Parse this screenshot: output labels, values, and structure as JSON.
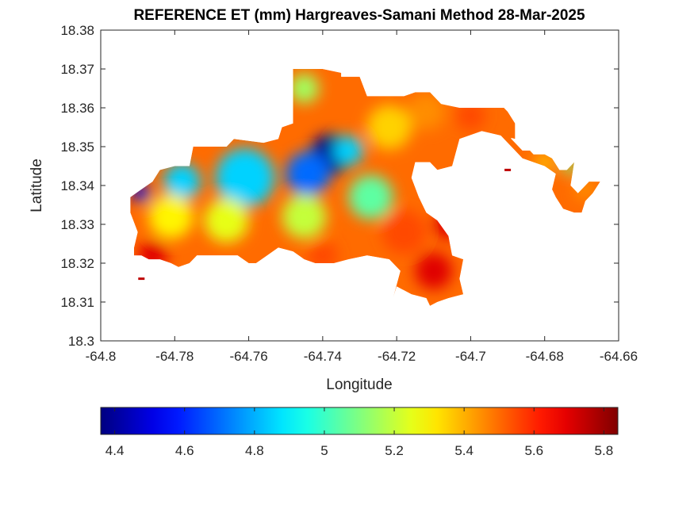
{
  "chart_data": {
    "type": "heatmap",
    "title": "REFERENCE ET (mm) Hargreaves-Samani Method  28-Mar-2025",
    "xlabel": "Longitude",
    "ylabel": "Latitude",
    "xlim": [
      -64.8,
      -64.66
    ],
    "ylim": [
      18.3,
      18.38
    ],
    "x_ticks": [
      -64.8,
      -64.78,
      -64.76,
      -64.74,
      -64.72,
      -64.7,
      -64.68,
      -64.66
    ],
    "x_tick_labels": [
      "-64.8",
      "-64.78",
      "-64.76",
      "-64.74",
      "-64.72",
      "-64.7",
      "-64.68",
      "-64.66"
    ],
    "y_ticks": [
      18.3,
      18.31,
      18.32,
      18.33,
      18.34,
      18.35,
      18.36,
      18.37,
      18.38
    ],
    "y_tick_labels": [
      "18.3",
      "18.31",
      "18.32",
      "18.33",
      "18.34",
      "18.35",
      "18.36",
      "18.37",
      "18.38"
    ],
    "grid": false,
    "colormap": "jet",
    "colorbar": {
      "placement": "bottom",
      "range": [
        4.36,
        5.84
      ],
      "ticks": [
        4.4,
        4.6,
        4.8,
        5.0,
        5.2,
        5.4,
        5.6,
        5.8
      ],
      "tick_labels": [
        "4.4",
        "4.6",
        "4.8",
        "5",
        "5.2",
        "5.4",
        "5.6",
        "5.8"
      ]
    },
    "region": {
      "outline": [
        [
          -64.792,
          18.337
        ],
        [
          -64.789,
          18.339
        ],
        [
          -64.786,
          18.341
        ],
        [
          -64.784,
          18.344
        ],
        [
          -64.78,
          18.345
        ],
        [
          -64.776,
          18.345
        ],
        [
          -64.775,
          18.35
        ],
        [
          -64.766,
          18.35
        ],
        [
          -64.764,
          18.352
        ],
        [
          -64.756,
          18.351
        ],
        [
          -64.752,
          18.352
        ],
        [
          -64.751,
          18.355
        ],
        [
          -64.748,
          18.356
        ],
        [
          -64.748,
          18.37
        ],
        [
          -64.74,
          18.37
        ],
        [
          -64.735,
          18.369
        ],
        [
          -64.735,
          18.368
        ],
        [
          -64.73,
          18.368
        ],
        [
          -64.728,
          18.363
        ],
        [
          -64.718,
          18.363
        ],
        [
          -64.715,
          18.364
        ],
        [
          -64.711,
          18.364
        ],
        [
          -64.708,
          18.361
        ],
        [
          -64.703,
          18.36
        ],
        [
          -64.7,
          18.36
        ],
        [
          -64.691,
          18.36
        ],
        [
          -64.69,
          18.359
        ],
        [
          -64.688,
          18.356
        ],
        [
          -64.688,
          18.352
        ],
        [
          -64.697,
          18.354
        ],
        [
          -64.703,
          18.352
        ],
        [
          -64.705,
          18.345
        ],
        [
          -64.709,
          18.344
        ],
        [
          -64.711,
          18.346
        ],
        [
          -64.715,
          18.346
        ],
        [
          -64.716,
          18.342
        ],
        [
          -64.714,
          18.337
        ],
        [
          -64.712,
          18.333
        ],
        [
          -64.709,
          18.331
        ],
        [
          -64.706,
          18.327
        ],
        [
          -64.705,
          18.322
        ],
        [
          -64.702,
          18.321
        ],
        [
          -64.703,
          18.316
        ],
        [
          -64.702,
          18.312
        ],
        [
          -64.706,
          18.311
        ],
        [
          -64.709,
          18.31
        ],
        [
          -64.711,
          18.309
        ],
        [
          -64.712,
          18.311
        ],
        [
          -64.716,
          18.312
        ],
        [
          -64.72,
          18.314
        ],
        [
          -64.721,
          18.311
        ],
        [
          -64.719,
          18.318
        ],
        [
          -64.722,
          18.321
        ],
        [
          -64.728,
          18.322
        ],
        [
          -64.733,
          18.321
        ],
        [
          -64.737,
          18.32
        ],
        [
          -64.742,
          18.32
        ],
        [
          -64.745,
          18.321
        ],
        [
          -64.748,
          18.323
        ],
        [
          -64.752,
          18.324
        ],
        [
          -64.755,
          18.322
        ],
        [
          -64.758,
          18.32
        ],
        [
          -64.76,
          18.32
        ],
        [
          -64.763,
          18.322
        ],
        [
          -64.766,
          18.322
        ],
        [
          -64.77,
          18.322
        ],
        [
          -64.774,
          18.322
        ],
        [
          -64.776,
          18.32
        ],
        [
          -64.779,
          18.319
        ],
        [
          -64.781,
          18.32
        ],
        [
          -64.784,
          18.321
        ],
        [
          -64.787,
          18.321
        ],
        [
          -64.789,
          18.322
        ],
        [
          -64.791,
          18.322
        ],
        [
          -64.791,
          18.324
        ],
        [
          -64.79,
          18.328
        ],
        [
          -64.792,
          18.333
        ]
      ],
      "arm_outline": [
        [
          -64.699,
          18.36
        ],
        [
          -64.692,
          18.358
        ],
        [
          -64.69,
          18.356
        ],
        [
          -64.689,
          18.352
        ],
        [
          -64.686,
          18.349
        ],
        [
          -64.684,
          18.349
        ],
        [
          -64.683,
          18.348
        ],
        [
          -64.68,
          18.348
        ],
        [
          -64.678,
          18.347
        ],
        [
          -64.676,
          18.344
        ],
        [
          -64.674,
          18.344
        ],
        [
          -64.672,
          18.346
        ],
        [
          -64.673,
          18.34
        ],
        [
          -64.671,
          18.338
        ],
        [
          -64.668,
          18.341
        ],
        [
          -64.665,
          18.341
        ],
        [
          -64.667,
          18.338
        ],
        [
          -64.669,
          18.336
        ],
        [
          -64.67,
          18.333
        ],
        [
          -64.672,
          18.333
        ],
        [
          -64.675,
          18.334
        ],
        [
          -64.677,
          18.337
        ],
        [
          -64.678,
          18.339
        ],
        [
          -64.677,
          18.343
        ],
        [
          -64.68,
          18.345
        ],
        [
          -64.686,
          18.347
        ],
        [
          -64.689,
          18.35
        ],
        [
          -64.692,
          18.353
        ],
        [
          -64.696,
          18.357
        ]
      ],
      "islets": [
        [
          -64.789,
          18.316
        ],
        [
          -64.69,
          18.344
        ]
      ],
      "hotspots": [
        {
          "lon": -64.738,
          "lat": 18.348,
          "value": 4.38,
          "radius": 0.0055
        },
        {
          "lon": -64.744,
          "lat": 18.343,
          "value": 4.7,
          "radius": 0.006
        },
        {
          "lon": -64.733,
          "lat": 18.349,
          "value": 4.85,
          "radius": 0.004
        },
        {
          "lon": -64.761,
          "lat": 18.342,
          "value": 4.85,
          "radius": 0.008
        },
        {
          "lon": -64.778,
          "lat": 18.341,
          "value": 4.85,
          "radius": 0.005
        },
        {
          "lon": -64.789,
          "lat": 18.338,
          "value": 4.5,
          "radius": 0.0025
        },
        {
          "lon": -64.781,
          "lat": 18.332,
          "value": 5.3,
          "radius": 0.006
        },
        {
          "lon": -64.766,
          "lat": 18.331,
          "value": 5.25,
          "radius": 0.006
        },
        {
          "lon": -64.745,
          "lat": 18.332,
          "value": 5.2,
          "radius": 0.006
        },
        {
          "lon": -64.727,
          "lat": 18.337,
          "value": 5.05,
          "radius": 0.006
        },
        {
          "lon": -64.722,
          "lat": 18.355,
          "value": 5.35,
          "radius": 0.006
        },
        {
          "lon": -64.718,
          "lat": 18.328,
          "value": 5.55,
          "radius": 0.006
        },
        {
          "lon": -64.71,
          "lat": 18.318,
          "value": 5.7,
          "radius": 0.005
        },
        {
          "lon": -64.745,
          "lat": 18.365,
          "value": 5.15,
          "radius": 0.004
        },
        {
          "lon": -64.786,
          "lat": 18.322,
          "value": 5.7,
          "radius": 0.004
        },
        {
          "lon": -64.712,
          "lat": 18.359,
          "value": 5.45,
          "radius": 0.005
        },
        {
          "lon": -64.7,
          "lat": 18.358,
          "value": 5.55,
          "radius": 0.004
        },
        {
          "lon": -64.74,
          "lat": 18.322,
          "value": 5.55,
          "radius": 0.004
        },
        {
          "lon": -64.706,
          "lat": 18.33,
          "value": 5.7,
          "radius": 0.004
        },
        {
          "lon": -64.669,
          "lat": 18.339,
          "value": 5.45,
          "radius": 0.003
        },
        {
          "lon": -64.68,
          "lat": 18.346,
          "value": 5.4,
          "radius": 0.003
        },
        {
          "lon": -64.673,
          "lat": 18.345,
          "value": 5.1,
          "radius": 0.002
        }
      ]
    }
  }
}
